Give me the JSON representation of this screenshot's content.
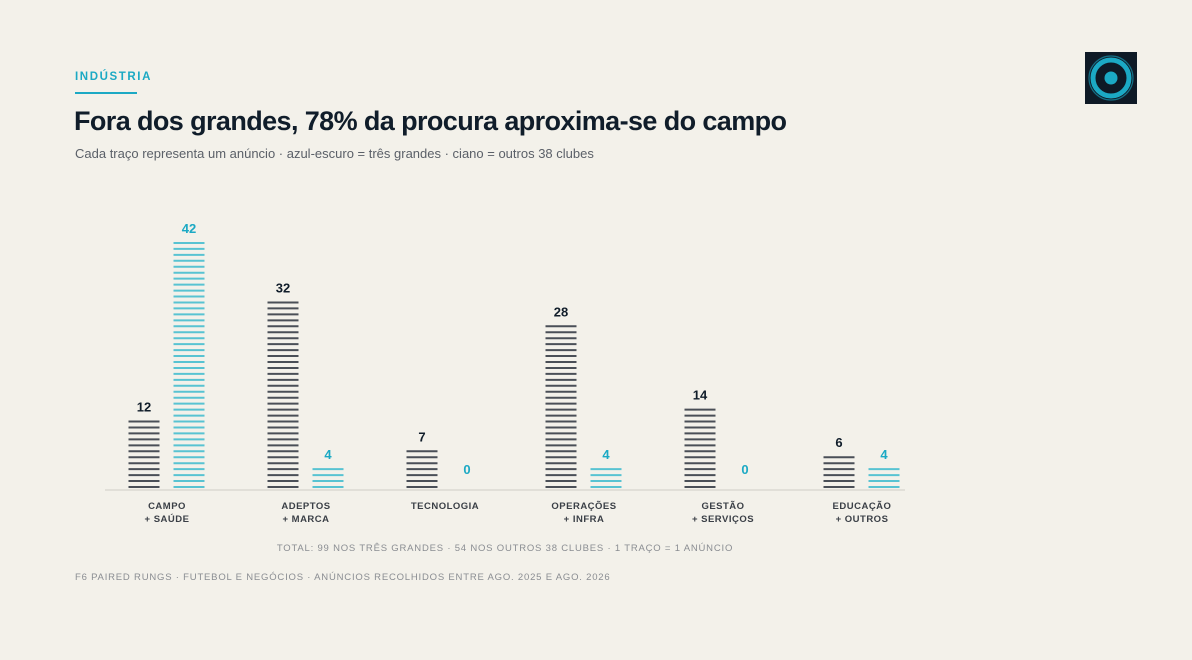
{
  "header": {
    "kicker": "INDÚSTRIA",
    "title": "Fora dos grandes, 78% da procura aproxima-se do campo",
    "subtitle": "Cada traço representa um anúncio · azul-escuro = três grandes · ciano = outros 38 clubes"
  },
  "logo": {
    "icon": "target-circle-icon",
    "background": "#0e1a26",
    "ring_color": "#1ba9c4"
  },
  "colors": {
    "tres_grandes": "#4a4f57",
    "outros_clubes": "#58c3d2",
    "value_tres_grandes": "#101d2a",
    "value_outros_clubes": "#1ba9c4",
    "axis": "#cfcdc6",
    "category_label": "#3a3f46"
  },
  "chart_data": {
    "type": "bar",
    "categories": [
      [
        "CAMPO",
        "+ SAÚDE"
      ],
      [
        "ADEPTOS",
        "+ MARCA"
      ],
      [
        "TECNOLOGIA"
      ],
      [
        "OPERAÇÕES",
        "+ INFRA"
      ],
      [
        "GESTÃO",
        "+ SERVIÇOS"
      ],
      [
        "EDUCAÇÃO",
        "+ OUTROS"
      ]
    ],
    "series": [
      {
        "key": "tres_grandes",
        "values": [
          12,
          32,
          7,
          28,
          14,
          6
        ]
      },
      {
        "key": "outros_clubes",
        "values": [
          42,
          4,
          0,
          4,
          0,
          4
        ]
      }
    ],
    "ylim": [
      0,
      42
    ],
    "unit_note": "1 traço = 1 anúncio"
  },
  "notes": {
    "total": "TOTAL: 99 NOS TRÊS GRANDES · 54 NOS OUTROS 38 CLUBES · 1 TRAÇO = 1 ANÚNCIO",
    "footer": "F6 PAIRED RUNGS · FUTEBOL E NEGÓCIOS · ANÚNCIOS RECOLHIDOS ENTRE AGO. 2025 E AGO. 2026"
  }
}
